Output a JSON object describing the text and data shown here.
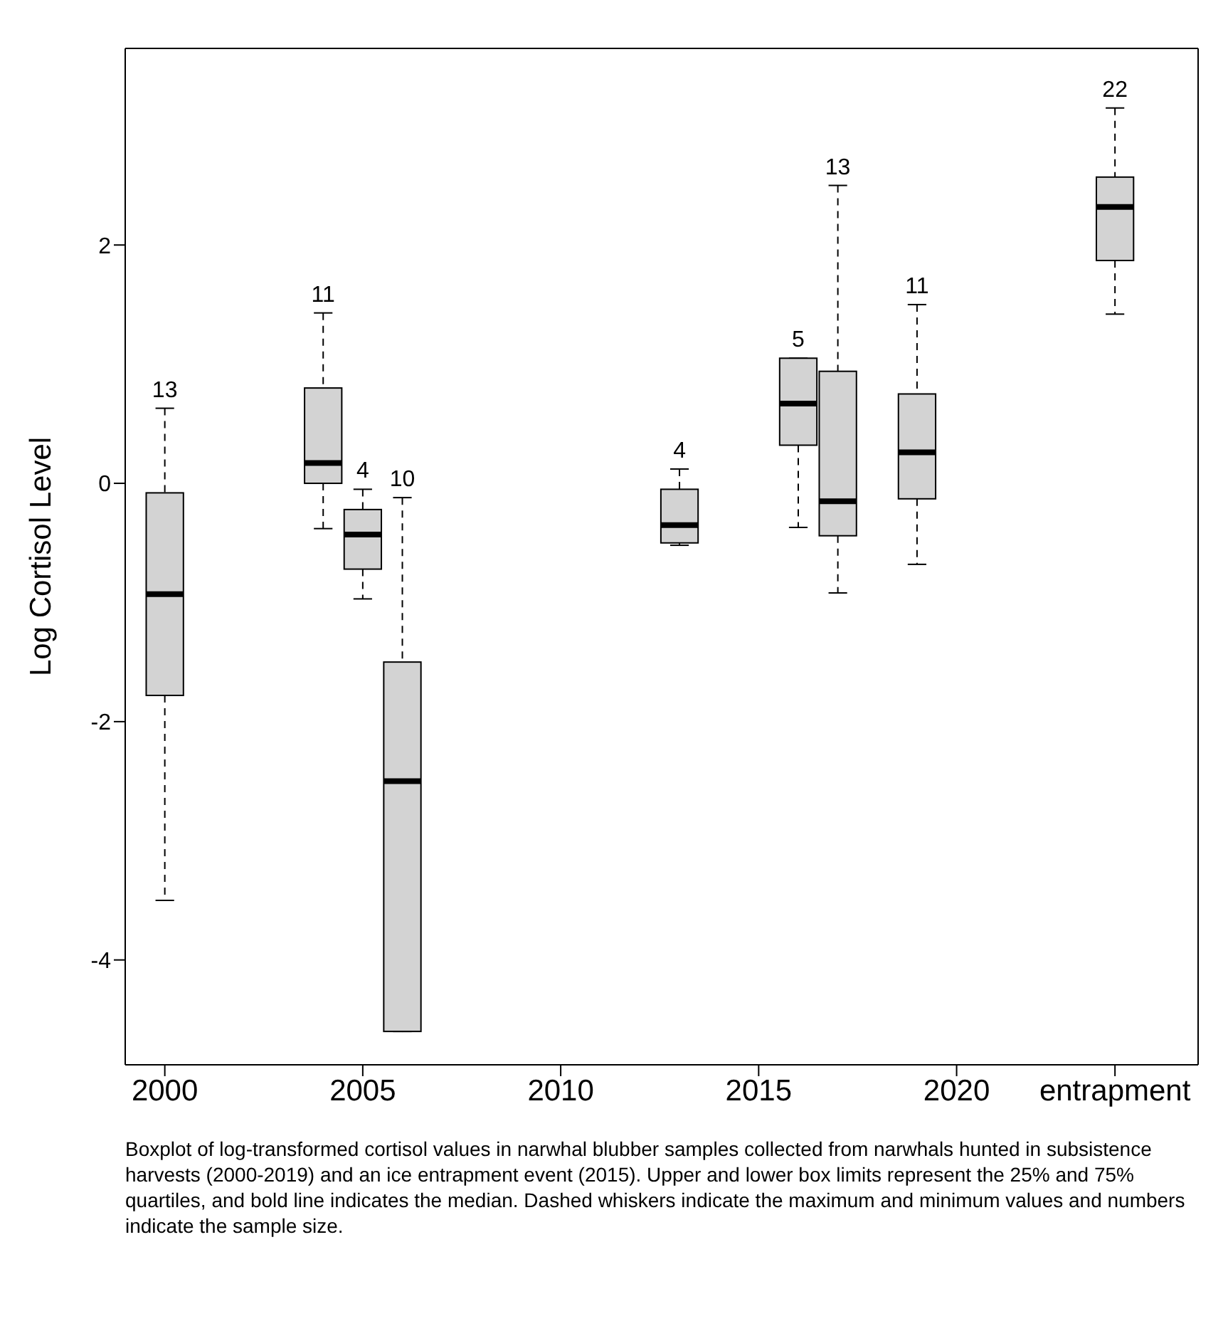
{
  "chart_data": {
    "type": "box",
    "ylabel": "Log Cortisol Level",
    "color": "#d3d3d3",
    "x": [
      2000,
      2004,
      2005,
      2006,
      2013,
      2016,
      2017,
      2019,
      2024
    ],
    "boxes": [
      {
        "low": -3.5,
        "q1": -1.78,
        "median": -0.93,
        "q3": -0.08,
        "high": 0.63
      },
      {
        "low": -0.38,
        "q1": 0.0,
        "median": 0.17,
        "q3": 0.8,
        "high": 1.43
      },
      {
        "low": -0.97,
        "q1": -0.72,
        "median": -0.43,
        "q3": -0.22,
        "high": -0.05
      },
      {
        "low": -4.6,
        "q1": -4.6,
        "median": -2.5,
        "q3": -1.5,
        "high": -0.12
      },
      {
        "low": -0.52,
        "q1": -0.5,
        "median": -0.35,
        "q3": -0.05,
        "high": 0.12
      },
      {
        "low": -0.37,
        "q1": 0.32,
        "median": 0.67,
        "q3": 1.05,
        "high": 1.05
      },
      {
        "low": -0.92,
        "q1": -0.44,
        "median": -0.15,
        "q3": 0.94,
        "high": 2.5
      },
      {
        "low": -0.68,
        "q1": -0.13,
        "median": 0.26,
        "q3": 0.75,
        "high": 1.5
      },
      {
        "low": 1.42,
        "q1": 1.87,
        "median": 2.32,
        "q3": 2.57,
        "high": 3.15
      }
    ],
    "xlim": [
      1999,
      2026.1
    ],
    "xticks": [
      2000,
      2005,
      2010,
      2015,
      2020,
      {
        "value": 2024,
        "label": "entrapment"
      }
    ],
    "ylim": [
      -4.88,
      3.65
    ],
    "yticks": [
      -4,
      -2,
      0,
      2
    ],
    "grid": false,
    "line_style": "dashed",
    "annotations": [
      {
        "text": "13",
        "x": 2000,
        "y": 0.63
      },
      {
        "text": "11",
        "x": 2004,
        "y": 1.43
      },
      {
        "text": "4",
        "x": 2005,
        "y": -0.05
      },
      {
        "text": "10",
        "x": 2006,
        "y": -0.12
      },
      {
        "text": "4",
        "x": 2013,
        "y": 0.12
      },
      {
        "text": "5",
        "x": 2016,
        "y": 1.05
      },
      {
        "text": "13",
        "x": 2017,
        "y": 2.5
      },
      {
        "text": "11",
        "x": 2019,
        "y": 1.5
      },
      {
        "text": "22",
        "x": 2024,
        "y": 3.15
      },
      "Boxplot of log-transformed cortisol values in narwhal blubber samples collected from narwhals hunted in subsistence harvests (2000-2019) and an ice entrapment event (2015). Upper and lower box limits represent the 25% and 75% quartiles, and bold line indicates the median. Dashed whiskers indicate the maximum and minimum values and numbers indicate the sample size."
    ]
  }
}
